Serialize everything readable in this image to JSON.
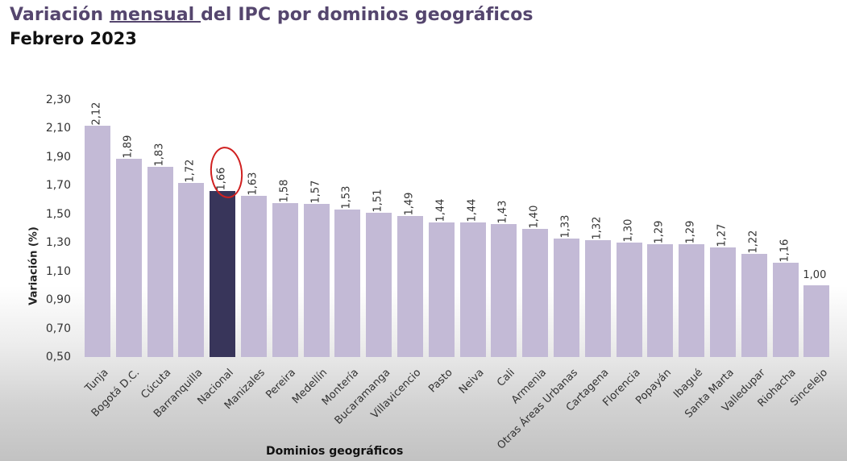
{
  "header": {
    "title_pre": "Variación ",
    "title_underlined": "mensual ",
    "title_post": "del IPC por dominios geográficos",
    "subtitle": "Febrero 2023"
  },
  "colors": {
    "bar": "#c3bad6",
    "highlight_bar": "#38355a",
    "title": "#55466e",
    "annotation_circle": "#d02020"
  },
  "chart_data": {
    "type": "bar",
    "title": "Variación mensual del IPC por dominios geográficos",
    "subtitle": "Febrero 2023",
    "xlabel": "Dominios geográficos",
    "ylabel": "Variación (%)",
    "ylim": [
      0.5,
      2.3
    ],
    "yticks": [
      "0,50",
      "0,70",
      "0,90",
      "1,10",
      "1,30",
      "1,50",
      "1,70",
      "1,90",
      "2,10",
      "2,30"
    ],
    "grid": false,
    "legend": null,
    "highlight": "Nacional",
    "annotation": "Hand-drawn red circle around the 1,66 (Nacional) label",
    "categories": [
      "Tunja",
      "Bogotá D.C.",
      "Cúcuta",
      "Barranquilla",
      "Nacional",
      "Manizales",
      "Pereira",
      "Medellín",
      "Montería",
      "Bucaramanga",
      "Villavicencio",
      "Pasto",
      "Neiva",
      "Cali",
      "Armenia",
      "Otras Áreas Urbanas",
      "Cartagena",
      "Florencia",
      "Popayán",
      "Ibagué",
      "Santa Marta",
      "Valledupar",
      "Riohacha",
      "Sincelejo"
    ],
    "values": [
      2.12,
      1.89,
      1.83,
      1.72,
      1.66,
      1.63,
      1.58,
      1.57,
      1.53,
      1.51,
      1.49,
      1.44,
      1.44,
      1.43,
      1.4,
      1.33,
      1.32,
      1.3,
      1.29,
      1.29,
      1.27,
      1.22,
      1.16,
      1.0
    ],
    "value_labels": [
      "2,12",
      "1,89",
      "1,83",
      "1,72",
      "1,66",
      "1,63",
      "1,58",
      "1,57",
      "1,53",
      "1,51",
      "1,49",
      "1,44",
      "1,44",
      "1,43",
      "1,40",
      "1,33",
      "1,32",
      "1,30",
      "1,29",
      "1,29",
      "1,27",
      "1,22",
      "1,16",
      "1,00"
    ]
  }
}
